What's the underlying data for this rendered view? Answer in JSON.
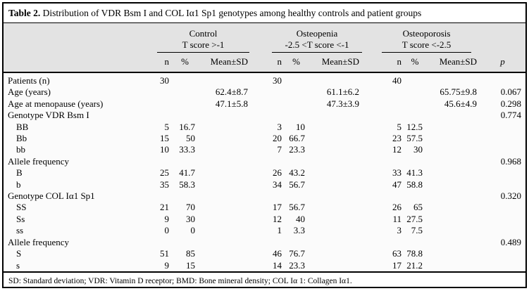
{
  "table": {
    "title_label": "Table 2.",
    "title_text": " Distribution of VDR Bsm I and COL Iα1 Sp1 genotypes among healthy controls and patient groups",
    "groups": [
      {
        "name": "Control",
        "criteria": "T score >-1"
      },
      {
        "name": "Osteopenia",
        "criteria": "-2.5 <T score <-1"
      },
      {
        "name": "Osteoporosis",
        "criteria": "T score <-2.5"
      }
    ],
    "subheaders": {
      "n": "n",
      "pct": "%",
      "mean": "Mean±SD",
      "p": "p"
    },
    "rows": [
      {
        "label": "Patients (n)",
        "indent": false,
        "cells": [
          "30",
          "",
          "",
          "30",
          "",
          "",
          "40",
          "",
          "",
          ""
        ]
      },
      {
        "label": "Age (years)",
        "indent": false,
        "cells": [
          "",
          "",
          "62.4±8.7",
          "",
          "",
          "61.1±6.2",
          "",
          "",
          "65.75±9.8",
          "0.067"
        ]
      },
      {
        "label": "Age at menopause (years)",
        "indent": false,
        "cells": [
          "",
          "",
          "47.1±5.8",
          "",
          "",
          "47.3±3.9",
          "",
          "",
          "45.6±4.9",
          "0.298"
        ]
      },
      {
        "label": "Genotype VDR Bsm I",
        "indent": false,
        "cells": [
          "",
          "",
          "",
          "",
          "",
          "",
          "",
          "",
          "",
          "0.774"
        ]
      },
      {
        "label": "BB",
        "indent": true,
        "cells": [
          "5",
          "16.7",
          "",
          "3",
          "10",
          "",
          "5",
          "12.5",
          "",
          ""
        ]
      },
      {
        "label": "Bb",
        "indent": true,
        "cells": [
          "15",
          "50",
          "",
          "20",
          "66.7",
          "",
          "23",
          "57.5",
          "",
          ""
        ]
      },
      {
        "label": "bb",
        "indent": true,
        "cells": [
          "10",
          "33.3",
          "",
          "7",
          "23.3",
          "",
          "12",
          "30",
          "",
          ""
        ]
      },
      {
        "label": "Allele frequency",
        "indent": false,
        "cells": [
          "",
          "",
          "",
          "",
          "",
          "",
          "",
          "",
          "",
          "0.968"
        ]
      },
      {
        "label": "B",
        "indent": true,
        "cells": [
          "25",
          "41.7",
          "",
          "26",
          "43.2",
          "",
          "33",
          "41.3",
          "",
          ""
        ]
      },
      {
        "label": "b",
        "indent": true,
        "cells": [
          "35",
          "58.3",
          "",
          "34",
          "56.7",
          "",
          "47",
          "58.8",
          "",
          ""
        ]
      },
      {
        "label": "Genotype COL Iα1 Sp1",
        "indent": false,
        "cells": [
          "",
          "",
          "",
          "",
          "",
          "",
          "",
          "",
          "",
          "0.320"
        ]
      },
      {
        "label": "SS",
        "indent": true,
        "cells": [
          "21",
          "70",
          "",
          "17",
          "56.7",
          "",
          "26",
          "65",
          "",
          ""
        ]
      },
      {
        "label": "Ss",
        "indent": true,
        "cells": [
          "9",
          "30",
          "",
          "12",
          "40",
          "",
          "11",
          "27.5",
          "",
          ""
        ]
      },
      {
        "label": "ss",
        "indent": true,
        "cells": [
          "0",
          "0",
          "",
          "1",
          "3.3",
          "",
          "3",
          "7.5",
          "",
          ""
        ]
      },
      {
        "label": "Allele frequency",
        "indent": false,
        "cells": [
          "",
          "",
          "",
          "",
          "",
          "",
          "",
          "",
          "",
          "0.489"
        ]
      },
      {
        "label": "S",
        "indent": true,
        "cells": [
          "51",
          "85",
          "",
          "46",
          "76.7",
          "",
          "63",
          "78.8",
          "",
          ""
        ]
      },
      {
        "label": "s",
        "indent": true,
        "cells": [
          "9",
          "15",
          "",
          "14",
          "23.3",
          "",
          "17",
          "21.2",
          "",
          ""
        ]
      }
    ],
    "footnote": "SD: Standard deviation; VDR: Vitamin D receptor; BMD: Bone mineral density; COL Iα 1: Collagen Iα1.",
    "colors": {
      "header_background": "#e3e3e3",
      "border": "#000000",
      "background": "#ffffff"
    }
  }
}
